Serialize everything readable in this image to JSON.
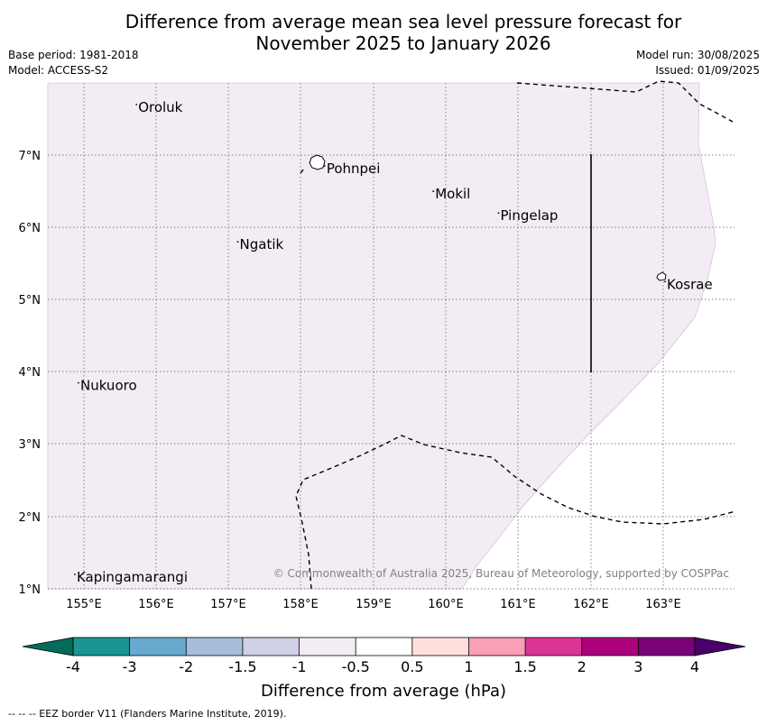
{
  "title": {
    "line1": "Difference from average mean sea level pressure forecast for",
    "line2": "November 2025 to January 2026"
  },
  "meta_left": {
    "base_period": "Base period: 1981-2018",
    "model": "Model: ACCESS-S2"
  },
  "meta_right": {
    "model_run": "Model run: 30/08/2025",
    "issued": "Issued: 01/09/2025"
  },
  "map": {
    "lon_ticks": [
      "155°E",
      "156°E",
      "157°E",
      "158°E",
      "159°E",
      "160°E",
      "161°E",
      "162°E",
      "163°E"
    ],
    "lat_ticks": [
      "7°N",
      "6°N",
      "5°N",
      "4°N",
      "3°N",
      "2°N",
      "1°N"
    ],
    "places": [
      {
        "name": "Oroluk",
        "lon": 155.75,
        "lat": 7.6
      },
      {
        "name": "Pohnpei",
        "lon": 158.35,
        "lat": 6.75
      },
      {
        "name": "Mokil",
        "lon": 159.85,
        "lat": 6.4
      },
      {
        "name": "Pingelap",
        "lon": 160.75,
        "lat": 6.1
      },
      {
        "name": "Ngatik",
        "lon": 157.15,
        "lat": 5.7
      },
      {
        "name": "Kosrae",
        "lon": 163.05,
        "lat": 5.15
      },
      {
        "name": "Nukuoro",
        "lon": 154.95,
        "lat": 3.75
      },
      {
        "name": "Kapingamarangi",
        "lon": 154.9,
        "lat": 1.1
      }
    ],
    "shading_color": "#f4ecf5",
    "copyright": "© Commonwealth of Australia 2025, Bureau of Meteorology, supported by COSPPac"
  },
  "legend": {
    "ticks": [
      "-4",
      "-3",
      "-2",
      "-1.5",
      "-1",
      "-0.5",
      "0.5",
      "1",
      "1.5",
      "2",
      "3",
      "4"
    ],
    "colors": [
      "#1a9494",
      "#67a9cf",
      "#a7bddb",
      "#d0d1e6",
      "#f4ecf5",
      "#ffffff",
      "#fde0dd",
      "#fa9fb5",
      "#dd3497",
      "#ae017e",
      "#7a0177"
    ],
    "under_color": "#016c59",
    "over_color": "#49006a",
    "label": "Difference from average (hPa)"
  },
  "footer": "--  --  -- EEZ border V11 (Flanders Marine Institute, 2019)."
}
